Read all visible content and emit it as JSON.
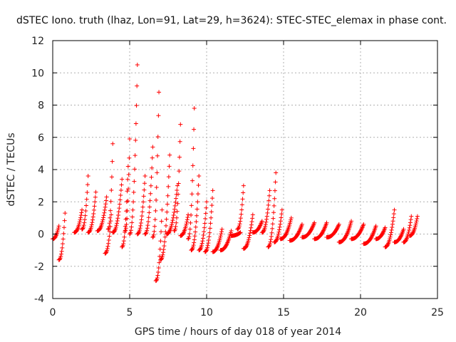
{
  "chart_data": {
    "type": "scatter",
    "title": "dSTEC Iono. truth (lhaz, Lon=91, Lat=29, h=3624): STEC-STEC_elemax in phase cont.",
    "xlabel": "GPS time / hours of day 018 of year 2014",
    "ylabel": "dSTEC  / TECUs",
    "xlim": [
      0,
      25
    ],
    "ylim": [
      -4,
      12
    ],
    "xticks": [
      0,
      5,
      10,
      15,
      20,
      25
    ],
    "yticks": [
      -4,
      -2,
      0,
      2,
      4,
      6,
      8,
      10,
      12
    ],
    "grid": true,
    "marker": "+",
    "series": [
      {
        "name": "dSTEC",
        "color": "#ff0000",
        "arcs": [
          {
            "t0": 0.0,
            "t1": 0.4,
            "y0": -0.3,
            "y1": 0.5
          },
          {
            "t0": 0.4,
            "t1": 0.8,
            "y0": -1.6,
            "y1": 1.3
          },
          {
            "t0": 1.4,
            "t1": 1.9,
            "y0": 0.1,
            "y1": 1.5
          },
          {
            "t0": 1.9,
            "t1": 2.3,
            "y0": 0.3,
            "y1": 3.6
          },
          {
            "t0": 2.3,
            "t1": 2.8,
            "y0": 0.1,
            "y1": 2.6
          },
          {
            "t0": 2.9,
            "t1": 3.5,
            "y0": 0.2,
            "y1": 2.3
          },
          {
            "t0": 3.4,
            "t1": 3.8,
            "y0": -1.2,
            "y1": 1.2
          },
          {
            "t0": 3.6,
            "t1": 3.9,
            "y0": 0.3,
            "y1": 5.6
          },
          {
            "t0": 3.9,
            "t1": 4.5,
            "y0": 0.1,
            "y1": 3.4
          },
          {
            "t0": 4.5,
            "t1": 4.9,
            "y0": -0.8,
            "y1": 4.2
          },
          {
            "t0": 4.7,
            "t1": 5.0,
            "y0": 0.2,
            "y1": 5.9
          },
          {
            "t0": 5.0,
            "t1": 5.5,
            "y0": 0.0,
            "y1": 10.5
          },
          {
            "t0": 5.5,
            "t1": 6.0,
            "y0": 0.0,
            "y1": 3.6
          },
          {
            "t0": 6.0,
            "t1": 6.5,
            "y0": 0.0,
            "y1": 5.4
          },
          {
            "t0": 6.5,
            "t1": 6.9,
            "y0": -0.2,
            "y1": 8.8
          },
          {
            "t0": 6.7,
            "t1": 7.1,
            "y0": -2.9,
            "y1": 1.5
          },
          {
            "t0": 7.0,
            "t1": 7.6,
            "y0": -1.6,
            "y1": 4.9
          },
          {
            "t0": 7.4,
            "t1": 8.1,
            "y0": 0.0,
            "y1": 3.0
          },
          {
            "t0": 7.9,
            "t1": 8.3,
            "y0": 0.2,
            "y1": 6.8
          },
          {
            "t0": 8.3,
            "t1": 8.8,
            "y0": -0.1,
            "y1": 1.2
          },
          {
            "t0": 8.8,
            "t1": 9.2,
            "y0": -0.3,
            "y1": 7.8
          },
          {
            "t0": 9.0,
            "t1": 9.5,
            "y0": -1.0,
            "y1": 3.6
          },
          {
            "t0": 9.5,
            "t1": 10.0,
            "y0": -1.0,
            "y1": 2.0
          },
          {
            "t0": 9.9,
            "t1": 10.4,
            "y0": -1.1,
            "y1": 2.7
          },
          {
            "t0": 10.4,
            "t1": 11.0,
            "y0": -1.1,
            "y1": 0.3
          },
          {
            "t0": 10.9,
            "t1": 11.6,
            "y0": -1.0,
            "y1": 0.2
          },
          {
            "t0": 11.6,
            "t1": 12.2,
            "y0": -0.1,
            "y1": 0.1
          },
          {
            "t0": 12.0,
            "t1": 12.4,
            "y0": 0.3,
            "y1": 3.0
          },
          {
            "t0": 12.4,
            "t1": 13.0,
            "y0": -0.9,
            "y1": 1.2
          },
          {
            "t0": 13.0,
            "t1": 13.6,
            "y0": 0.1,
            "y1": 0.8
          },
          {
            "t0": 13.6,
            "t1": 14.1,
            "y0": 0.1,
            "y1": 2.7
          },
          {
            "t0": 14.0,
            "t1": 14.5,
            "y0": -0.8,
            "y1": 3.8
          },
          {
            "t0": 14.4,
            "t1": 14.9,
            "y0": -0.5,
            "y1": 1.5
          },
          {
            "t0": 14.8,
            "t1": 15.5,
            "y0": -0.3,
            "y1": 1.0
          },
          {
            "t0": 15.4,
            "t1": 16.2,
            "y0": -0.4,
            "y1": 0.6
          },
          {
            "t0": 16.2,
            "t1": 17.0,
            "y0": -0.2,
            "y1": 0.7
          },
          {
            "t0": 17.0,
            "t1": 17.8,
            "y0": -0.3,
            "y1": 0.7
          },
          {
            "t0": 17.8,
            "t1": 18.6,
            "y0": -0.2,
            "y1": 0.6
          },
          {
            "t0": 18.6,
            "t1": 19.4,
            "y0": -0.5,
            "y1": 0.8
          },
          {
            "t0": 19.4,
            "t1": 20.2,
            "y0": -0.3,
            "y1": 0.6
          },
          {
            "t0": 20.2,
            "t1": 21.0,
            "y0": -0.6,
            "y1": 0.5
          },
          {
            "t0": 21.0,
            "t1": 21.6,
            "y0": -0.3,
            "y1": 0.4
          },
          {
            "t0": 21.6,
            "t1": 22.2,
            "y0": -0.8,
            "y1": 1.5
          },
          {
            "t0": 22.2,
            "t1": 22.8,
            "y0": -0.5,
            "y1": 0.3
          },
          {
            "t0": 22.8,
            "t1": 23.3,
            "y0": -0.5,
            "y1": 1.1
          },
          {
            "t0": 23.2,
            "t1": 23.7,
            "y0": -0.1,
            "y1": 1.1
          }
        ]
      }
    ]
  }
}
